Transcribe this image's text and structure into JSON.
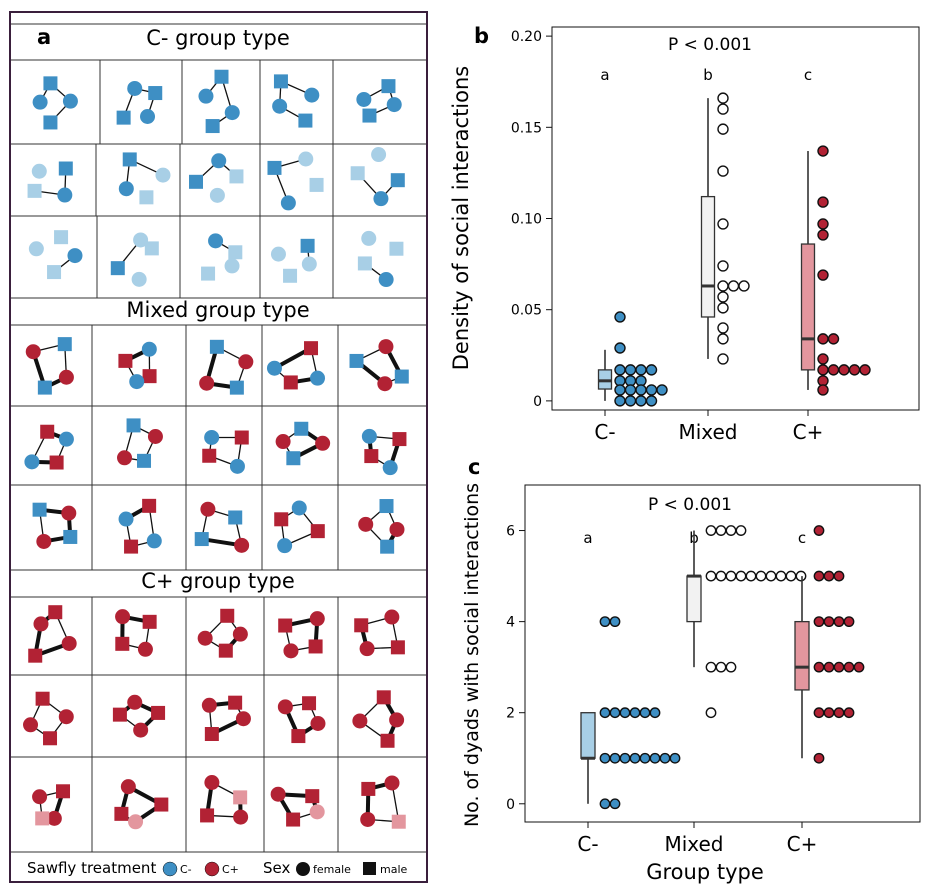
{
  "colors": {
    "cminus": "#3e8fc4",
    "cminus_light": "#a8cfe6",
    "cplus": "#b22234",
    "cplus_light": "#e3969e",
    "mixed_box": "#f2f2f2",
    "frame": "#3a1f3c"
  },
  "panel_a": {
    "panel_label": "a",
    "sections": [
      {
        "title": "C- group type",
        "key": "cminus",
        "rows": 3
      },
      {
        "title": "Mixed group type",
        "key": "mixed",
        "rows": 3
      },
      {
        "title": "C+ group type",
        "key": "cplus",
        "rows": 3
      }
    ],
    "legend": {
      "treatment_label": "Sawfly treatment",
      "cminus_label": "C-",
      "cplus_label": "C+",
      "sex_label": "Sex",
      "female_label": "female",
      "male_label": "male"
    }
  },
  "chart_data": [
    {
      "panel": "b",
      "type": "box",
      "title": "P < 0.001",
      "xlabel": "",
      "ylabel": "Density of social interactions",
      "categories": [
        "C-",
        "Mixed",
        "C+"
      ],
      "letters": [
        "a",
        "b",
        "c"
      ],
      "ylim": [
        -0.005,
        0.205
      ],
      "yticks": [
        0,
        0.05,
        0.1,
        0.15,
        0.2
      ],
      "ytick_labels": [
        "0",
        "0.05",
        "0.10",
        "0.15",
        "0.20"
      ],
      "boxes": [
        {
          "group": "C-",
          "min": 0,
          "q1": 0.0065,
          "median": 0.011,
          "q3": 0.017,
          "max": 0.028
        },
        {
          "group": "Mixed",
          "min": 0.023,
          "q1": 0.046,
          "median": 0.063,
          "q3": 0.112,
          "max": 0.166
        },
        {
          "group": "C+",
          "min": 0.006,
          "q1": 0.017,
          "median": 0.034,
          "q3": 0.086,
          "max": 0.137
        }
      ],
      "points": [
        {
          "group": "C-",
          "values": [
            0.046,
            0.029,
            0.017,
            0.017,
            0.017,
            0.017,
            0.011,
            0.011,
            0.011,
            0.006,
            0.006,
            0.006,
            0.006,
            0.006,
            0,
            0,
            0,
            0
          ]
        },
        {
          "group": "Mixed",
          "values": [
            0.166,
            0.16,
            0.149,
            0.126,
            0.097,
            0.074,
            0.063,
            0.063,
            0.063,
            0.057,
            0.051,
            0.04,
            0.034,
            0.023
          ]
        },
        {
          "group": "C+",
          "values": [
            0.137,
            0.109,
            0.097,
            0.091,
            0.069,
            0.034,
            0.034,
            0.023,
            0.017,
            0.017,
            0.017,
            0.017,
            0.017,
            0.011,
            0.006
          ]
        }
      ]
    },
    {
      "panel": "c",
      "type": "box",
      "title": "P < 0.001",
      "xlabel": "Group type",
      "ylabel": "No. of dyads with social interactions",
      "categories": [
        "C-",
        "Mixed",
        "C+"
      ],
      "letters": [
        "a",
        "b",
        "c"
      ],
      "ylim": [
        -0.4,
        7.0
      ],
      "yticks": [
        0,
        2,
        4,
        6
      ],
      "ytick_labels": [
        "0",
        "2",
        "4",
        "6"
      ],
      "boxes": [
        {
          "group": "C-",
          "min": 0,
          "q1": 1,
          "median": 1,
          "q3": 2,
          "max": 2
        },
        {
          "group": "Mixed",
          "min": 3,
          "q1": 4,
          "median": 5,
          "q3": 5,
          "max": 6
        },
        {
          "group": "C+",
          "min": 1,
          "q1": 2.5,
          "median": 3,
          "q3": 4,
          "max": 5
        }
      ],
      "points": [
        {
          "group": "C-",
          "values": [
            4,
            4,
            2,
            2,
            2,
            2,
            2,
            2,
            1,
            1,
            1,
            1,
            1,
            1,
            1,
            1,
            0,
            0
          ]
        },
        {
          "group": "Mixed",
          "values": [
            6,
            6,
            6,
            6,
            5,
            5,
            5,
            5,
            5,
            5,
            5,
            5,
            5,
            5,
            3,
            3,
            3,
            2
          ]
        },
        {
          "group": "C+",
          "values": [
            6,
            5,
            5,
            5,
            4,
            4,
            4,
            4,
            3,
            3,
            3,
            3,
            3,
            2,
            2,
            2,
            2,
            1
          ]
        }
      ]
    }
  ]
}
